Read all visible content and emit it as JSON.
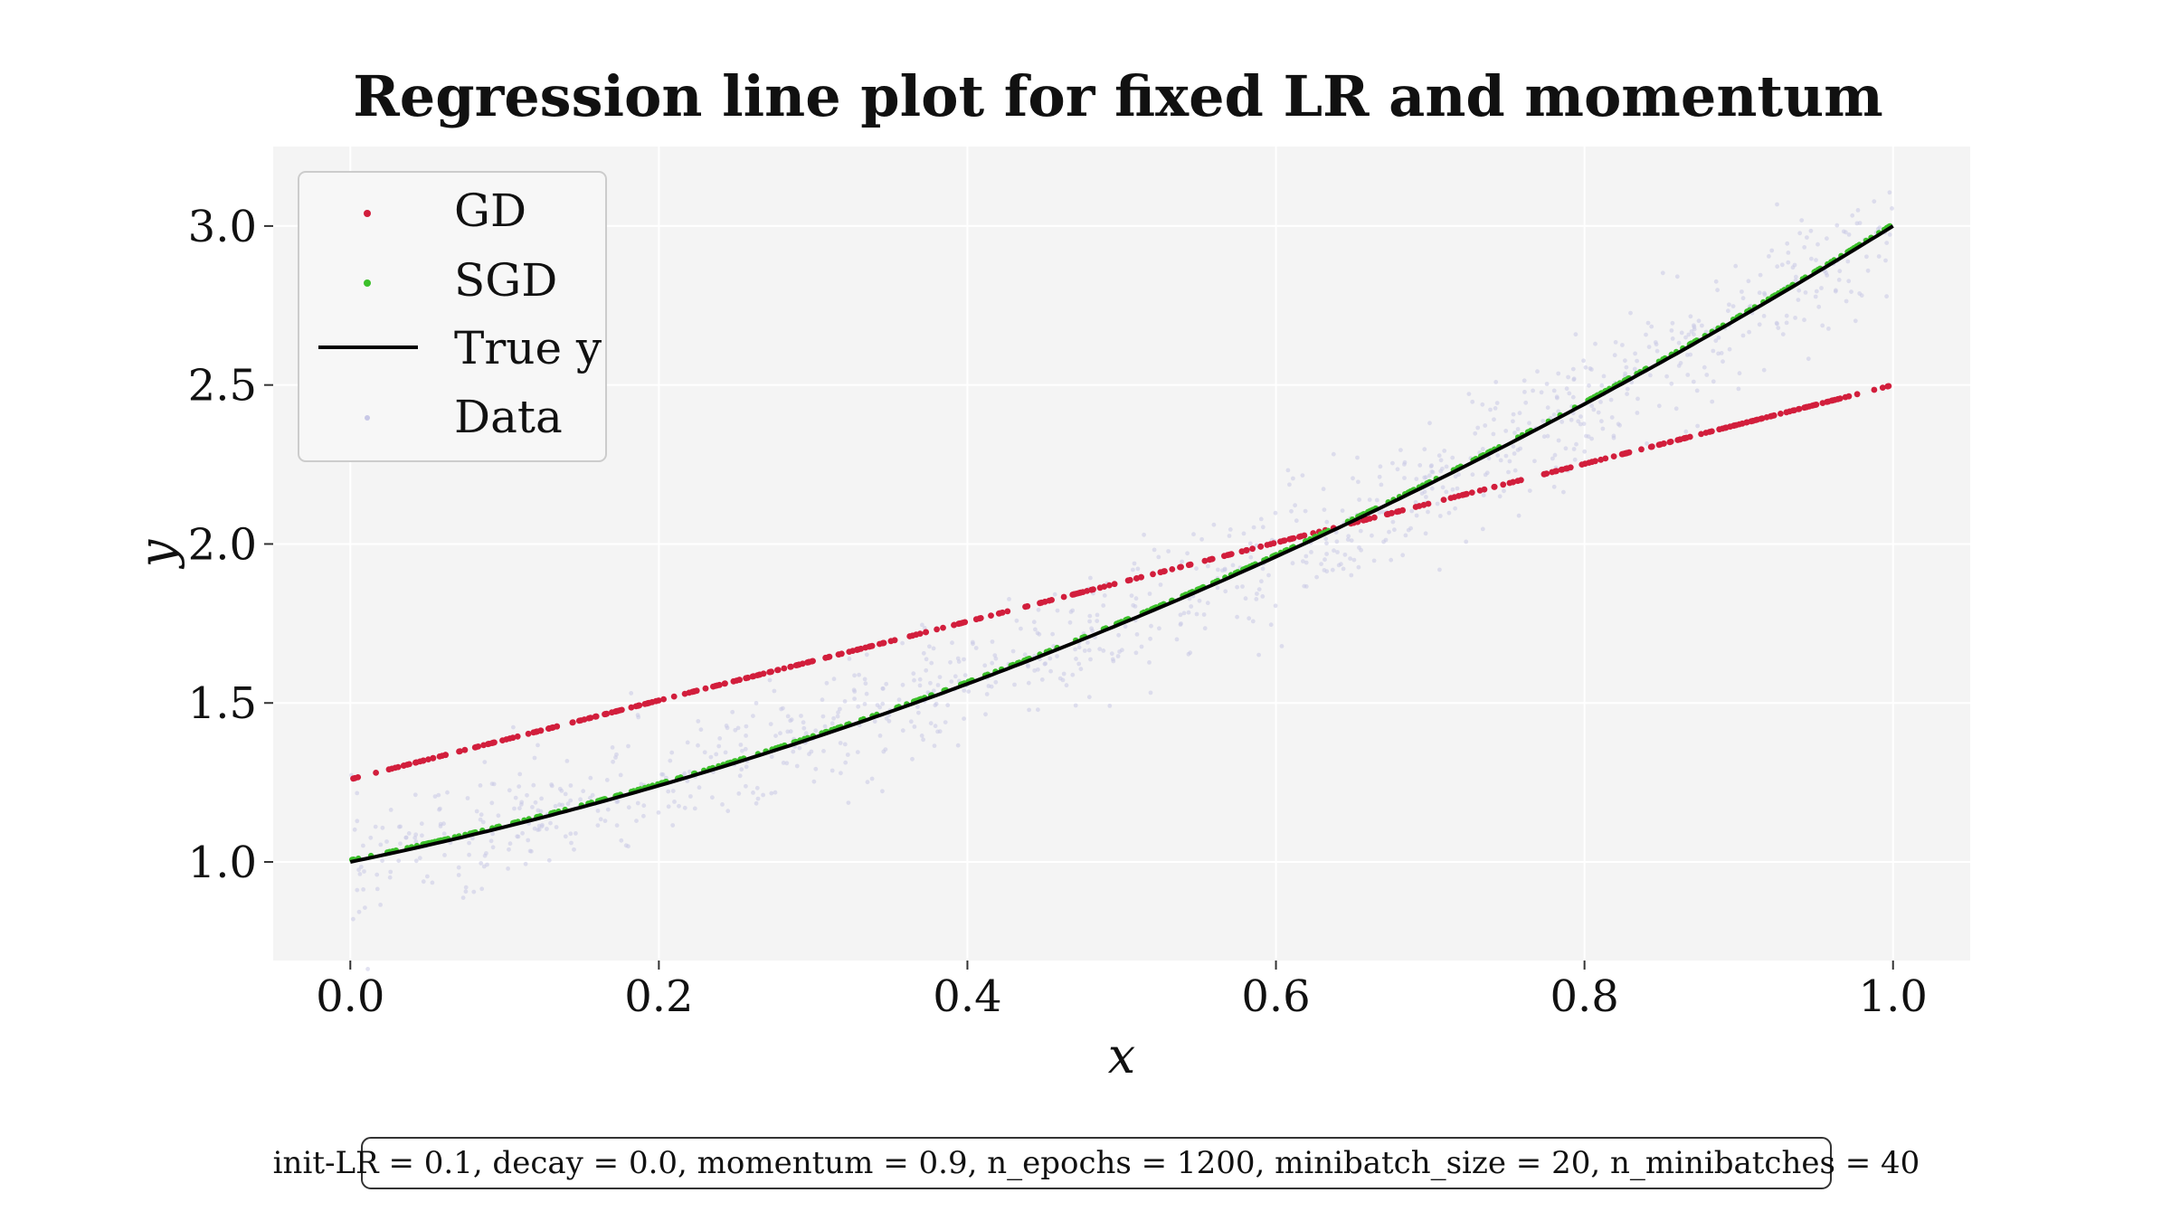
{
  "chart_data": {
    "type": "scatter",
    "title": "Regression line plot for fixed LR and momentum",
    "xlabel": "x",
    "ylabel": "y",
    "xlim": [
      -0.05,
      1.05
    ],
    "ylim": [
      0.69,
      3.25
    ],
    "xticks": [
      "0.0",
      "0.2",
      "0.4",
      "0.6",
      "0.8",
      "1.0"
    ],
    "yticks": [
      "1.0",
      "1.5",
      "2.0",
      "2.5",
      "3.0"
    ],
    "grid": true,
    "legend_position": "top-left",
    "legend": [
      "GD",
      "SGD",
      "True y",
      "Data"
    ],
    "series": [
      {
        "name": "GD",
        "kind": "points",
        "color": "#d21e3c",
        "fit": {
          "intercept": 1.26,
          "slope": 1.24
        },
        "x_from": 0.0,
        "x_to": 1.0,
        "n_points": 400
      },
      {
        "name": "SGD",
        "kind": "points",
        "color": "#3cc02a",
        "fit": {
          "intercept": 1.0,
          "linear": 1.0,
          "quadratic": 1.0
        },
        "x_from": 0.0,
        "x_to": 1.0,
        "n_points": 400
      },
      {
        "name": "True y",
        "kind": "line",
        "color": "#000000",
        "formula": {
          "intercept": 1.0,
          "linear": 1.0,
          "quadratic": 1.0
        },
        "x_from": 0.0,
        "x_to": 1.0
      },
      {
        "name": "Data",
        "kind": "points",
        "color": "#c8c8e6",
        "noise_sd": 0.1,
        "n_points": 1000
      }
    ],
    "annotation": "init-LR = 0.1, decay = 0.0, momentum = 0.9, n_epochs = 1200, minibatch_size = 20, n_minibatches = 40"
  },
  "colors": {
    "plot_background": "#f4f4f4",
    "grid": "#ffffff",
    "gd": "#d21e3c",
    "sgd": "#3cc02a",
    "true_y": "#000000",
    "data": "#c8c8e6"
  }
}
